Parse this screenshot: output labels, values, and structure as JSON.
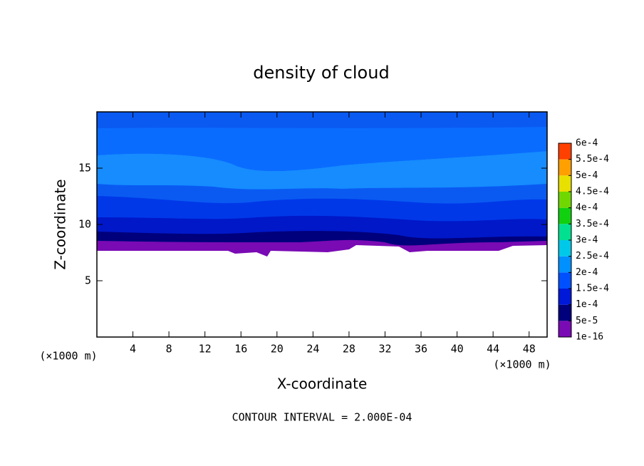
{
  "chart_data": {
    "type": "contour",
    "title": "density of cloud",
    "xlabel": "X-coordinate",
    "ylabel": "Z-coordinate",
    "x_unit_label": "(×1000 m)",
    "y_unit_label": "(×1000 m)",
    "footer": "CONTOUR INTERVAL = 2.000E-04",
    "xlim": [
      0,
      50
    ],
    "ylim": [
      0,
      20
    ],
    "xticks": [
      4,
      8,
      12,
      16,
      20,
      24,
      28,
      32,
      36,
      40,
      44,
      48
    ],
    "yticks": [
      5,
      10,
      15
    ],
    "colorbar_ticks": [
      {
        "value": 1e-16,
        "label": "1e-16"
      },
      {
        "value": 5e-05,
        "label": "5e-5"
      },
      {
        "value": 0.0001,
        "label": "1e-4"
      },
      {
        "value": 0.00015,
        "label": "1.5e-4"
      },
      {
        "value": 0.0002,
        "label": "2e-4"
      },
      {
        "value": 0.00025,
        "label": "2.5e-4"
      },
      {
        "value": 0.0003,
        "label": "3e-4"
      },
      {
        "value": 0.00035,
        "label": "3.5e-4"
      },
      {
        "value": 0.0004,
        "label": "4e-4"
      },
      {
        "value": 0.00045,
        "label": "4.5e-4"
      },
      {
        "value": 0.0005,
        "label": "5e-4"
      },
      {
        "value": 0.00055,
        "label": "5.5e-4"
      },
      {
        "value": 0.0006,
        "label": "6e-4"
      }
    ],
    "colorbar_colors": [
      "#7a0ab4",
      "#00007c",
      "#0018d8",
      "#0050ff",
      "#0090ff",
      "#00c8e8",
      "#00e090",
      "#10d010",
      "#70d800",
      "#e8e000",
      "#ffa000",
      "#ff4000"
    ]
  }
}
